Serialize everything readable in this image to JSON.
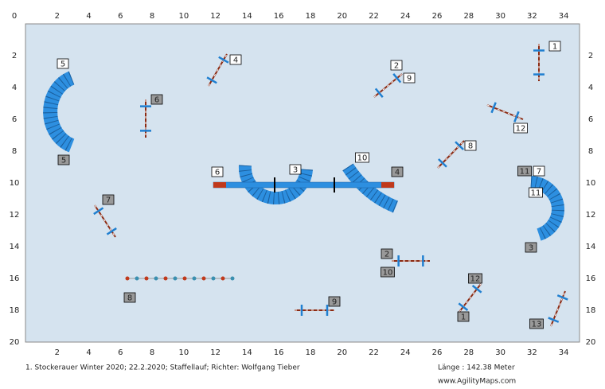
{
  "x_ticks_top": [
    2,
    4,
    6,
    8,
    10,
    12,
    14,
    16,
    18,
    20,
    22,
    24,
    26,
    28,
    30,
    32,
    34
  ],
  "x_ticks_bottom": [
    2,
    4,
    6,
    8,
    10,
    12,
    14,
    16,
    18,
    20,
    22,
    24,
    26,
    28,
    30,
    32,
    34
  ],
  "y_ticks_left": [
    0,
    2,
    4,
    6,
    8,
    10,
    12,
    14,
    16,
    18,
    20
  ],
  "y_ticks_right": [
    2,
    4,
    6,
    8,
    10,
    12,
    14,
    16,
    18,
    20
  ],
  "white_labels": [
    "1",
    "2",
    "3",
    "4",
    "5",
    "6",
    "7",
    "8",
    "9",
    "10",
    "11",
    "12"
  ],
  "gray_labels": [
    "1",
    "2",
    "3",
    "4",
    "5",
    "6",
    "7",
    "8",
    "9",
    "10",
    "11",
    "12",
    "13"
  ],
  "footer": {
    "event": "1. Stockerauer Winter 2020; 22.2.2020; Staffellauf; Richter: Wolfgang Tieber",
    "length": "Länge : 142.38 Meter",
    "website": "www.AgilityMaps.com"
  }
}
